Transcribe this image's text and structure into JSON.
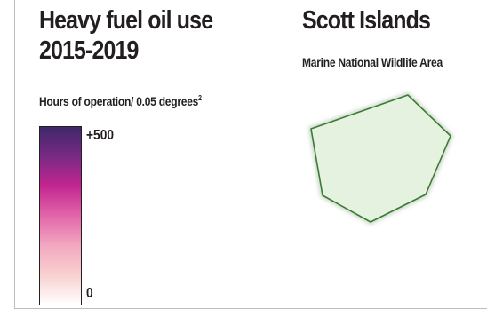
{
  "legend": {
    "title_line1": "Heavy fuel oil use",
    "title_line2": "2015-2019",
    "subtitle": "Hours of operation/ 0.05 degrees",
    "subtitle_sup": "2",
    "ramp_max_label": "+500",
    "ramp_min_label": "0",
    "ramp_colors": [
      "#3f2769",
      "#7a2a85",
      "#c2258f",
      "#e266aa",
      "#f2a9c0",
      "#f8cfcf",
      "#ffffff"
    ]
  },
  "map": {
    "title": "Scott Islands",
    "subtitle": "Marine National Wildlife Area",
    "protected_area_fill": "#e6f2e0",
    "protected_area_stroke": "#3b7a34"
  }
}
